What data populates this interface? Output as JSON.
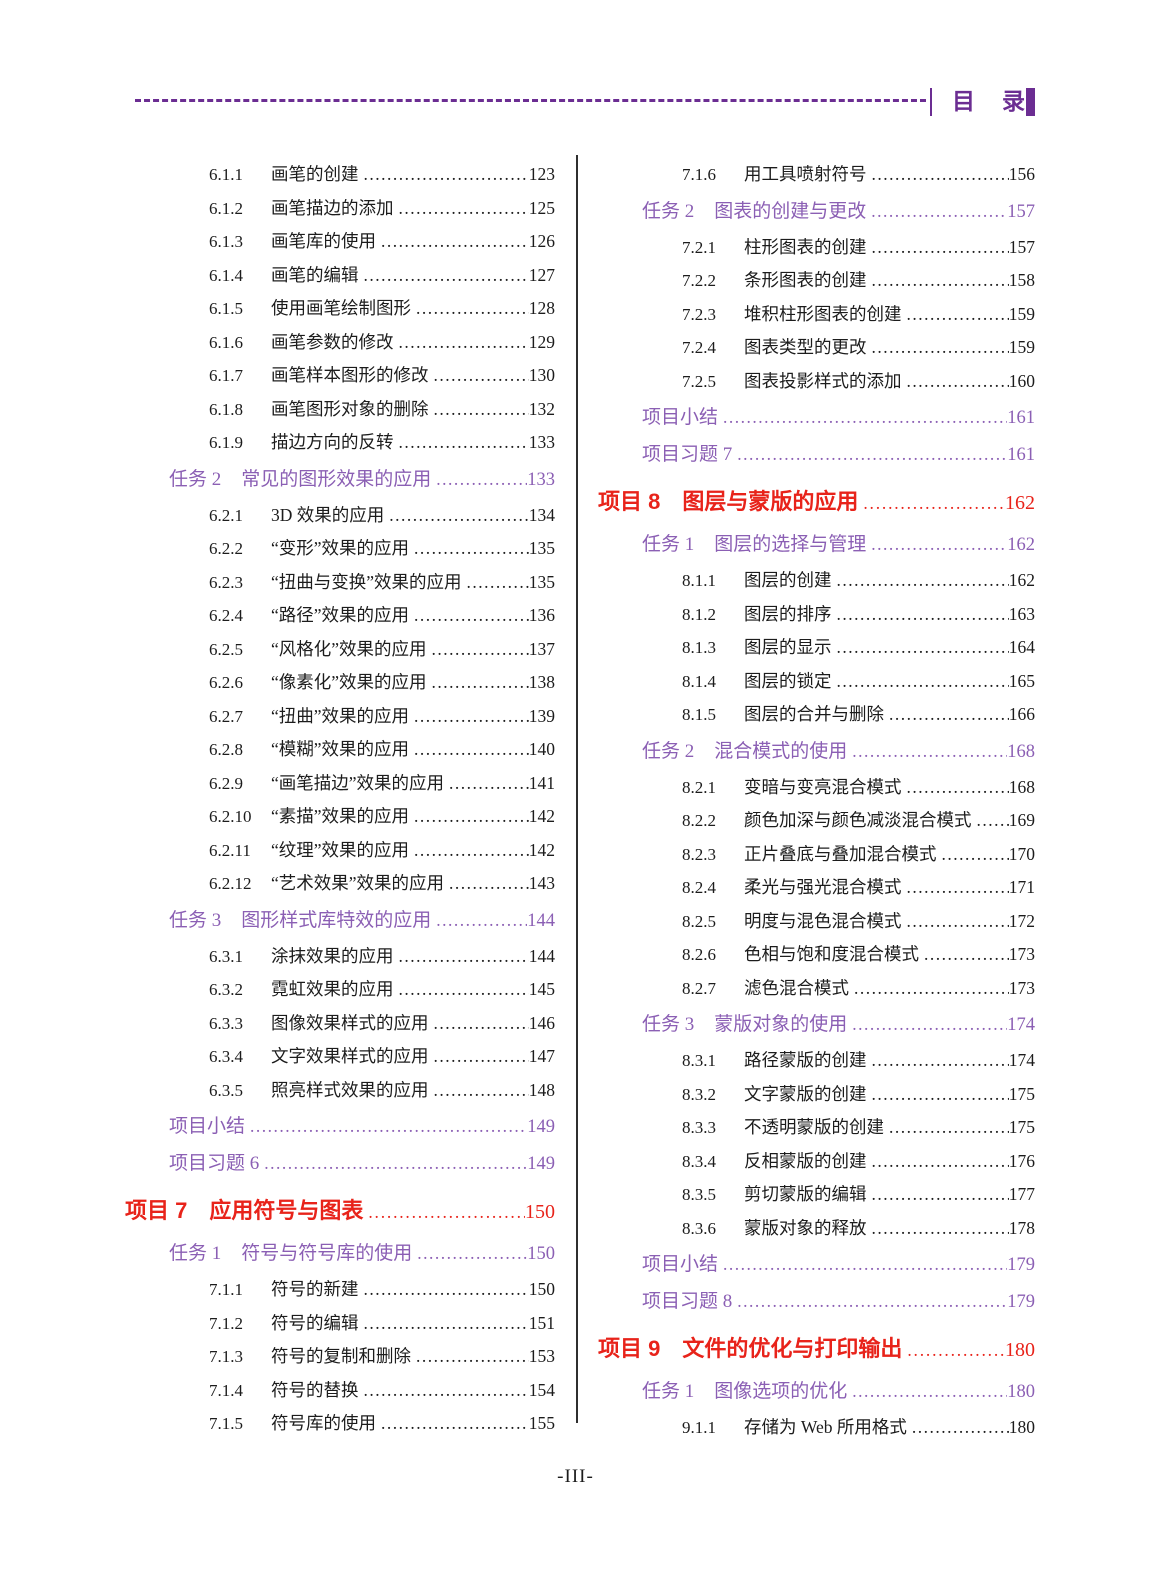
{
  "header": {
    "title": "目　录"
  },
  "footer": {
    "page_label": "-III-"
  },
  "colors": {
    "text": "#1c1c1c",
    "chapter_red": "#e8231a",
    "task_purple": "#8b5fb4",
    "header_purple": "#6b2d92",
    "divider": "#2f2f2f",
    "background": "#ffffff"
  },
  "columns": {
    "left": [
      {
        "type": "item",
        "num": "6.1.1",
        "title": "画笔的创建",
        "page": "123"
      },
      {
        "type": "item",
        "num": "6.1.2",
        "title": "画笔描边的添加",
        "page": "125"
      },
      {
        "type": "item",
        "num": "6.1.3",
        "title": "画笔库的使用",
        "page": "126"
      },
      {
        "type": "item",
        "num": "6.1.4",
        "title": "画笔的编辑",
        "page": "127"
      },
      {
        "type": "item",
        "num": "6.1.5",
        "title": "使用画笔绘制图形",
        "page": "128"
      },
      {
        "type": "item",
        "num": "6.1.6",
        "title": "画笔参数的修改",
        "page": "129"
      },
      {
        "type": "item",
        "num": "6.1.7",
        "title": "画笔样本图形的修改",
        "page": "130"
      },
      {
        "type": "item",
        "num": "6.1.8",
        "title": "画笔图形对象的删除",
        "page": "132"
      },
      {
        "type": "item",
        "num": "6.1.9",
        "title": "描边方向的反转",
        "page": "133"
      },
      {
        "type": "task",
        "num": "任务 2",
        "title": "常见的图形效果的应用",
        "page": "133"
      },
      {
        "type": "item",
        "num": "6.2.1",
        "title": "3D 效果的应用",
        "page": "134"
      },
      {
        "type": "item",
        "num": "6.2.2",
        "title": "“变形”效果的应用",
        "page": "135"
      },
      {
        "type": "item",
        "num": "6.2.3",
        "title": "“扭曲与变换”效果的应用",
        "page": "135"
      },
      {
        "type": "item",
        "num": "6.2.4",
        "title": "“路径”效果的应用",
        "page": "136"
      },
      {
        "type": "item",
        "num": "6.2.5",
        "title": "“风格化”效果的应用",
        "page": "137"
      },
      {
        "type": "item",
        "num": "6.2.6",
        "title": "“像素化”效果的应用",
        "page": "138"
      },
      {
        "type": "item",
        "num": "6.2.7",
        "title": "“扭曲”效果的应用",
        "page": "139"
      },
      {
        "type": "item",
        "num": "6.2.8",
        "title": "“模糊”效果的应用",
        "page": "140"
      },
      {
        "type": "item",
        "num": "6.2.9",
        "title": "“画笔描边”效果的应用",
        "page": "141"
      },
      {
        "type": "item",
        "num": "6.2.10",
        "title": "“素描”效果的应用",
        "page": "142"
      },
      {
        "type": "item",
        "num": "6.2.11",
        "title": "“纹理”效果的应用",
        "page": "142"
      },
      {
        "type": "item",
        "num": "6.2.12",
        "title": "“艺术效果”效果的应用",
        "page": "143"
      },
      {
        "type": "task",
        "num": "任务 3",
        "title": "图形样式库特效的应用",
        "page": "144"
      },
      {
        "type": "item",
        "num": "6.3.1",
        "title": "涂抹效果的应用",
        "page": "144"
      },
      {
        "type": "item",
        "num": "6.3.2",
        "title": "霓虹效果的应用",
        "page": "145"
      },
      {
        "type": "item",
        "num": "6.3.3",
        "title": "图像效果样式的应用",
        "page": "146"
      },
      {
        "type": "item",
        "num": "6.3.4",
        "title": "文字效果样式的应用",
        "page": "147"
      },
      {
        "type": "item",
        "num": "6.3.5",
        "title": "照亮样式效果的应用",
        "page": "148"
      },
      {
        "type": "meta",
        "title": "项目小结",
        "page": "149"
      },
      {
        "type": "meta",
        "title": "项目习题 6",
        "page": "149"
      },
      {
        "type": "chapter",
        "num": "项目 7",
        "title": "应用符号与图表",
        "page": "150"
      },
      {
        "type": "task",
        "num": "任务 1",
        "title": "符号与符号库的使用",
        "page": "150"
      },
      {
        "type": "item",
        "num": "7.1.1",
        "title": "符号的新建",
        "page": "150"
      },
      {
        "type": "item",
        "num": "7.1.2",
        "title": "符号的编辑",
        "page": "151"
      },
      {
        "type": "item",
        "num": "7.1.3",
        "title": "符号的复制和删除",
        "page": "153"
      },
      {
        "type": "item",
        "num": "7.1.4",
        "title": "符号的替换",
        "page": "154"
      },
      {
        "type": "item",
        "num": "7.1.5",
        "title": "符号库的使用",
        "page": "155"
      }
    ],
    "right": [
      {
        "type": "item",
        "num": "7.1.6",
        "title": "用工具喷射符号",
        "page": "156"
      },
      {
        "type": "task",
        "num": "任务 2",
        "title": "图表的创建与更改",
        "page": "157"
      },
      {
        "type": "item",
        "num": "7.2.1",
        "title": "柱形图表的创建",
        "page": "157"
      },
      {
        "type": "item",
        "num": "7.2.2",
        "title": "条形图表的创建",
        "page": "158"
      },
      {
        "type": "item",
        "num": "7.2.3",
        "title": "堆积柱形图表的创建",
        "page": "159"
      },
      {
        "type": "item",
        "num": "7.2.4",
        "title": "图表类型的更改",
        "page": "159"
      },
      {
        "type": "item",
        "num": "7.2.5",
        "title": "图表投影样式的添加",
        "page": "160"
      },
      {
        "type": "meta",
        "title": "项目小结",
        "page": "161"
      },
      {
        "type": "meta",
        "title": "项目习题 7",
        "page": "161"
      },
      {
        "type": "chapter",
        "num": "项目 8",
        "title": "图层与蒙版的应用",
        "page": "162"
      },
      {
        "type": "task",
        "num": "任务 1",
        "title": "图层的选择与管理",
        "page": "162"
      },
      {
        "type": "item",
        "num": "8.1.1",
        "title": "图层的创建",
        "page": "162"
      },
      {
        "type": "item",
        "num": "8.1.2",
        "title": "图层的排序",
        "page": "163"
      },
      {
        "type": "item",
        "num": "8.1.3",
        "title": "图层的显示",
        "page": "164"
      },
      {
        "type": "item",
        "num": "8.1.4",
        "title": "图层的锁定",
        "page": "165"
      },
      {
        "type": "item",
        "num": "8.1.5",
        "title": "图层的合并与删除",
        "page": "166"
      },
      {
        "type": "task",
        "num": "任务 2",
        "title": "混合模式的使用",
        "page": "168"
      },
      {
        "type": "item",
        "num": "8.2.1",
        "title": "变暗与变亮混合模式",
        "page": "168"
      },
      {
        "type": "item",
        "num": "8.2.2",
        "title": "颜色加深与颜色减淡混合模式",
        "page": "169"
      },
      {
        "type": "item",
        "num": "8.2.3",
        "title": "正片叠底与叠加混合模式",
        "page": "170"
      },
      {
        "type": "item",
        "num": "8.2.4",
        "title": "柔光与强光混合模式",
        "page": "171"
      },
      {
        "type": "item",
        "num": "8.2.5",
        "title": "明度与混色混合模式",
        "page": "172"
      },
      {
        "type": "item",
        "num": "8.2.6",
        "title": "色相与饱和度混合模式",
        "page": "173"
      },
      {
        "type": "item",
        "num": "8.2.7",
        "title": "滤色混合模式",
        "page": "173"
      },
      {
        "type": "task",
        "num": "任务 3",
        "title": "蒙版对象的使用",
        "page": "174"
      },
      {
        "type": "item",
        "num": "8.3.1",
        "title": "路径蒙版的创建",
        "page": "174"
      },
      {
        "type": "item",
        "num": "8.3.2",
        "title": "文字蒙版的创建",
        "page": "175"
      },
      {
        "type": "item",
        "num": "8.3.3",
        "title": "不透明蒙版的创建",
        "page": "175"
      },
      {
        "type": "item",
        "num": "8.3.4",
        "title": "反相蒙版的创建",
        "page": "176"
      },
      {
        "type": "item",
        "num": "8.3.5",
        "title": "剪切蒙版的编辑",
        "page": "177"
      },
      {
        "type": "item",
        "num": "8.3.6",
        "title": "蒙版对象的释放",
        "page": "178"
      },
      {
        "type": "meta",
        "title": "项目小结",
        "page": "179"
      },
      {
        "type": "meta",
        "title": "项目习题 8",
        "page": "179"
      },
      {
        "type": "chapter",
        "num": "项目 9",
        "title": "文件的优化与打印输出",
        "page": "180"
      },
      {
        "type": "task",
        "num": "任务 1",
        "title": "图像选项的优化",
        "page": "180"
      },
      {
        "type": "item",
        "num": "9.1.1",
        "title": "存储为 Web 所用格式",
        "page": "180"
      }
    ]
  }
}
